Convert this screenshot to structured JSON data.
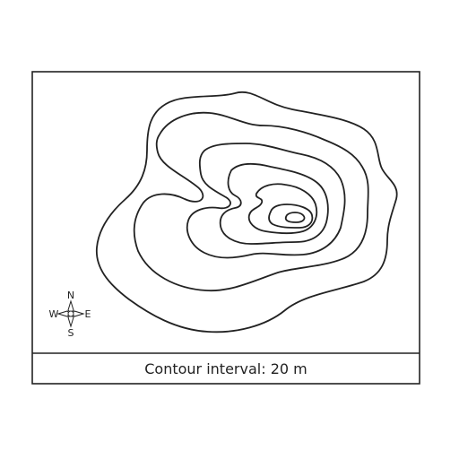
{
  "map": {
    "caption": "Contour interval: 20 m",
    "contour_interval_m": 20,
    "contour_line_count": 6,
    "line_color": "#222222"
  },
  "compass": {
    "north": "N",
    "south": "S",
    "east": "E",
    "west": "W"
  }
}
